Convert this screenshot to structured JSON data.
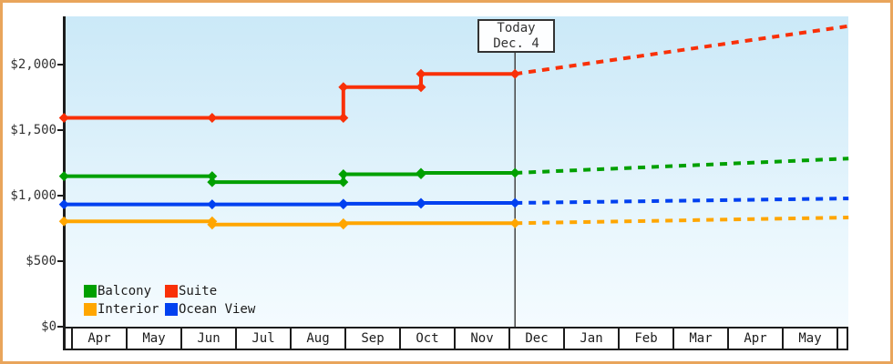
{
  "colors": {
    "frame_border": "#e9a55b",
    "axis": "#1c1c1c",
    "today_line": "#444444",
    "plot_gradient_top": "#cbe9f8",
    "plot_gradient_bottom": "#f4fbff",
    "balcony": "#00a000",
    "suite": "#f93008",
    "interior": "#ffa600",
    "ocean_view": "#0040f0"
  },
  "annotation": {
    "line1": "Today",
    "line2": "Dec. 4"
  },
  "legend": {
    "position": "bottom-left inside plot",
    "items": [
      {
        "label": "Balcony",
        "color": "#00a000"
      },
      {
        "label": "Suite",
        "color": "#f93008"
      },
      {
        "label": "Interior",
        "color": "#ffa600"
      },
      {
        "label": "Ocean View",
        "color": "#0040f0"
      }
    ]
  },
  "chart_data": {
    "type": "line",
    "title": "",
    "description": "Cruise cabin price history (solid step lines with diamond markers) up to today (Dec. 4), then dotted projected prices rising to the right edge.",
    "grid": false,
    "y_axis": {
      "tick_labels": [
        "$2,000",
        "$1,500",
        "$1,000",
        "$500",
        "$0"
      ],
      "tick_values": [
        2000,
        1500,
        1000,
        500,
        0
      ],
      "range": [
        0,
        2360
      ]
    },
    "x_axis": {
      "unit": "months since Apr 1 (t)",
      "month_labels": [
        "Apr",
        "May",
        "Jun",
        "Jul",
        "Aug",
        "Sep",
        "Oct",
        "Nov",
        "Dec",
        "Jan",
        "Feb",
        "Mar",
        "Apr",
        "May"
      ],
      "t_range": [
        -0.13,
        14.22
      ]
    },
    "today": {
      "label": "Today",
      "date": "Dec. 4",
      "t": 8.12
    },
    "series": [
      {
        "name": "Suite",
        "color": "#f93008",
        "points": [
          {
            "t": -0.13,
            "v": 1590
          },
          {
            "t": 2.58,
            "v": 1590
          },
          {
            "t": 4.98,
            "v": 1590
          },
          {
            "t": 4.98,
            "v": 1825
          },
          {
            "t": 6.4,
            "v": 1825
          },
          {
            "t": 6.4,
            "v": 1925
          },
          {
            "t": 8.12,
            "v": 1925
          }
        ],
        "projection": [
          {
            "t": 8.12,
            "v": 1925
          },
          {
            "t": 14.22,
            "v": 2290
          }
        ]
      },
      {
        "name": "Balcony",
        "color": "#00a000",
        "points": [
          {
            "t": -0.13,
            "v": 1145
          },
          {
            "t": 2.58,
            "v": 1145
          },
          {
            "t": 2.58,
            "v": 1100
          },
          {
            "t": 4.98,
            "v": 1100
          },
          {
            "t": 4.98,
            "v": 1160
          },
          {
            "t": 6.4,
            "v": 1160
          },
          {
            "t": 6.4,
            "v": 1170
          },
          {
            "t": 8.12,
            "v": 1170
          }
        ],
        "projection": [
          {
            "t": 8.12,
            "v": 1170
          },
          {
            "t": 14.22,
            "v": 1280
          }
        ]
      },
      {
        "name": "Ocean View",
        "color": "#0040f0",
        "points": [
          {
            "t": -0.13,
            "v": 930
          },
          {
            "t": 2.58,
            "v": 930
          },
          {
            "t": 4.98,
            "v": 930
          },
          {
            "t": 4.98,
            "v": 935
          },
          {
            "t": 6.4,
            "v": 935
          },
          {
            "t": 6.4,
            "v": 941
          },
          {
            "t": 8.12,
            "v": 941
          }
        ],
        "projection": [
          {
            "t": 8.12,
            "v": 941
          },
          {
            "t": 14.22,
            "v": 975
          }
        ]
      },
      {
        "name": "Interior",
        "color": "#ffa600",
        "points": [
          {
            "t": -0.13,
            "v": 800
          },
          {
            "t": 2.58,
            "v": 800
          },
          {
            "t": 2.58,
            "v": 776
          },
          {
            "t": 4.98,
            "v": 776
          },
          {
            "t": 4.98,
            "v": 786
          },
          {
            "t": 8.12,
            "v": 786
          }
        ],
        "projection": [
          {
            "t": 8.12,
            "v": 786
          },
          {
            "t": 14.22,
            "v": 830
          }
        ]
      }
    ]
  }
}
